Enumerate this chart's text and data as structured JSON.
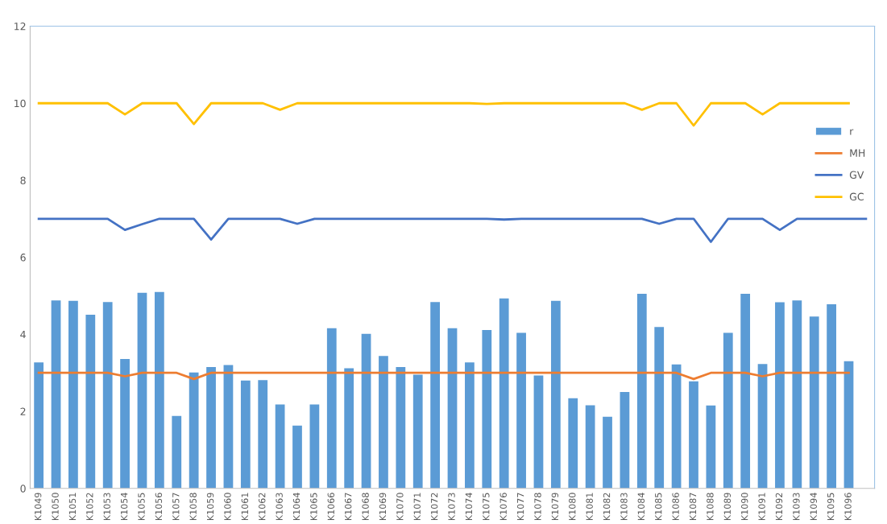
{
  "chart_data": {
    "type": "bar",
    "categories": [
      "K1049",
      "K1050",
      "K1051",
      "K1052",
      "K1053",
      "K1054",
      "K1055",
      "K1056",
      "K1057",
      "K1058",
      "K1059",
      "K1060",
      "K1061",
      "K1062",
      "K1063",
      "K1064",
      "K1065",
      "K1066",
      "K1067",
      "K1068",
      "K1069",
      "K1070",
      "K1071",
      "K1072",
      "K1073",
      "K1074",
      "K1075",
      "K1076",
      "K1077",
      "K1078",
      "K1079",
      "K1080",
      "K1081",
      "K1082",
      "K1083",
      "K1084",
      "K1085",
      "K1086",
      "K1087",
      "K1088",
      "K1089",
      "K1090",
      "K1091",
      "K1092",
      "K1093",
      "K1094",
      "K1095",
      "K1096",
      null
    ],
    "series": [
      {
        "name": "r",
        "color": "#5b9bd5",
        "values": [
          3.27,
          4.88,
          4.87,
          4.51,
          4.84,
          3.36,
          5.08,
          5.1,
          1.88,
          3.01,
          3.15,
          3.2,
          2.8,
          2.81,
          2.18,
          1.63,
          2.18,
          4.16,
          3.12,
          4.01,
          3.44,
          3.15,
          2.95,
          4.84,
          4.16,
          3.27,
          4.11,
          4.93,
          4.04,
          2.93,
          4.87,
          2.34,
          2.16,
          1.86,
          2.5,
          5.05,
          4.19,
          3.22,
          2.78,
          2.15,
          4.04,
          5.05,
          3.23,
          4.83,
          4.88,
          4.46,
          4.78,
          3.3,
          null
        ]
      },
      {
        "name": "MH",
        "type": "line",
        "color": "#ed7d31",
        "values": [
          3,
          3,
          3,
          3,
          3,
          2.91,
          3,
          3,
          3,
          2.84,
          3,
          3,
          3,
          3,
          3,
          3,
          3,
          3,
          3,
          3,
          3,
          3,
          3,
          3,
          3,
          3,
          3,
          3,
          3,
          3,
          3,
          3,
          3,
          3,
          3,
          3,
          3,
          3,
          2.84,
          3,
          3,
          3,
          2.91,
          3,
          3,
          3,
          3,
          3,
          null
        ]
      },
      {
        "name": "GV",
        "type": "line",
        "color": "#4472c4",
        "values": [
          7,
          7,
          7,
          7,
          7,
          6.71,
          6.86,
          7,
          7,
          7,
          6.46,
          7,
          7,
          7,
          7,
          6.87,
          7,
          7,
          7,
          7,
          7,
          7,
          7,
          7,
          7,
          7,
          7,
          6.98,
          7,
          7,
          7,
          7,
          7,
          7,
          7,
          7,
          6.87,
          7,
          7,
          6.4,
          7,
          7,
          7,
          6.71,
          7,
          7,
          7,
          7,
          7
        ]
      },
      {
        "name": "GC",
        "type": "line",
        "color": "#ffc000",
        "values": [
          10,
          10,
          10,
          10,
          10,
          9.71,
          10,
          10,
          10,
          9.46,
          10,
          10,
          10,
          10,
          9.83,
          10,
          10,
          10,
          10,
          10,
          10,
          10,
          10,
          10,
          10,
          10,
          9.98,
          10,
          10,
          10,
          10,
          10,
          10,
          10,
          10,
          9.83,
          10,
          10,
          9.42,
          10,
          10,
          10,
          9.71,
          10,
          10,
          10,
          10,
          10,
          null
        ]
      }
    ],
    "ylim": [
      0,
      12
    ],
    "yticks": [
      0,
      2,
      4,
      6,
      8,
      10,
      12
    ],
    "grid": false,
    "legend": "right",
    "marker": "none",
    "line_style": "solid"
  }
}
